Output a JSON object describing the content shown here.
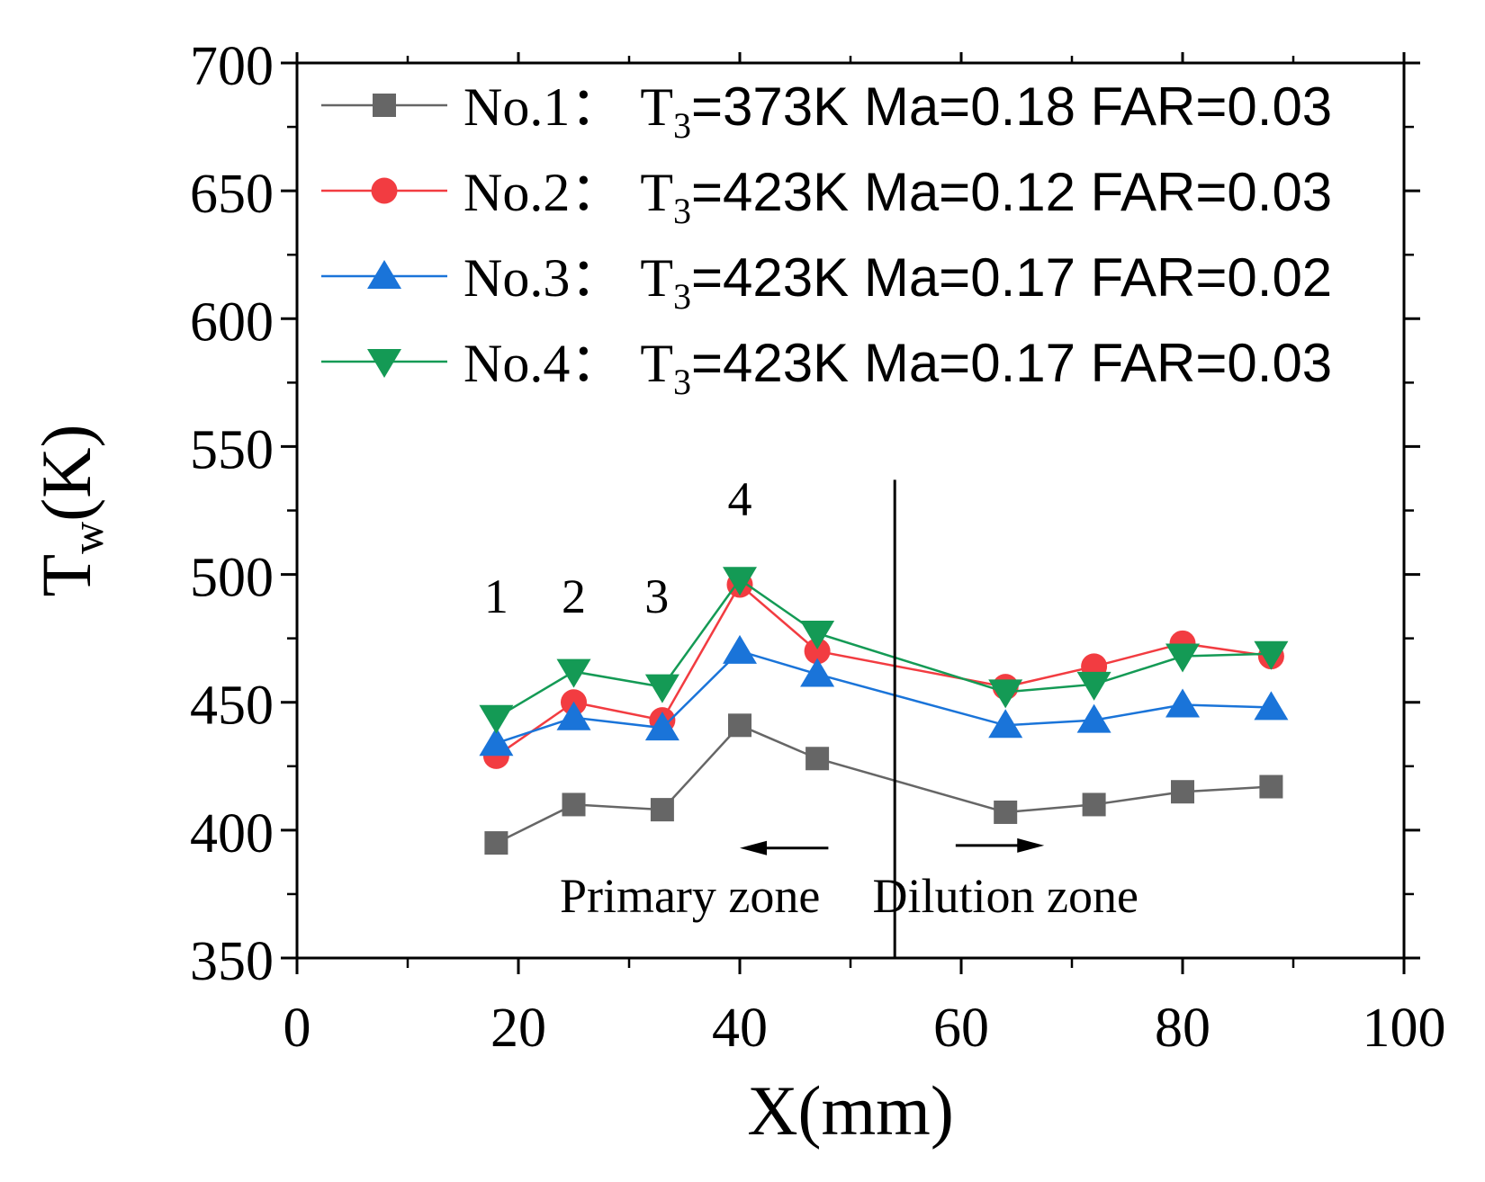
{
  "chart_data": {
    "type": "line",
    "title": "",
    "xlabel": "X(mm)",
    "ylabel_main": "T",
    "ylabel_sub": "w",
    "ylabel_tail": "(K)",
    "xlim": [
      0,
      100
    ],
    "ylim": [
      350,
      700
    ],
    "xticks": [
      0,
      20,
      40,
      60,
      80,
      100
    ],
    "yticks": [
      350,
      400,
      450,
      500,
      550,
      600,
      650,
      700
    ],
    "grid": false,
    "legend_position": "top",
    "x": [
      18,
      25,
      33,
      40,
      47,
      64,
      72,
      80,
      88
    ],
    "series": [
      {
        "name": "No.1",
        "legend_prefix": "No.1：",
        "legend_t": "T",
        "legend_sub": "3",
        "legend_rest": "=373K Ma=0.18 FAR=0.03",
        "color": "#666666",
        "marker": "square",
        "values": [
          395,
          410,
          408,
          441,
          428,
          407,
          410,
          415,
          417
        ]
      },
      {
        "name": "No.2",
        "legend_prefix": "No.2：",
        "legend_t": "T",
        "legend_sub": "3",
        "legend_rest": "=423K Ma=0.12 FAR=0.03",
        "color": "#f23c41",
        "marker": "circle",
        "values": [
          429,
          450,
          443,
          496,
          470,
          456,
          464,
          473,
          468
        ]
      },
      {
        "name": "No.3",
        "legend_prefix": "No.3：",
        "legend_t": "T",
        "legend_sub": "3",
        "legend_rest": "=423K Ma=0.17 FAR=0.02",
        "color": "#1a74d9",
        "marker": "triangle-up",
        "values": [
          434,
          444,
          440,
          470,
          461,
          441,
          443,
          449,
          448
        ]
      },
      {
        "name": "No.4",
        "legend_prefix": "No.4：",
        "legend_t": "T",
        "legend_sub": "3",
        "legend_rest": "=423K Ma=0.17 FAR=0.03",
        "color": "#149a55",
        "marker": "triangle-down",
        "values": [
          444,
          462,
          456,
          498,
          477,
          454,
          457,
          468,
          469
        ]
      }
    ],
    "point_labels": [
      {
        "text": "1",
        "x": 18,
        "y": 485
      },
      {
        "text": "2",
        "x": 25,
        "y": 485
      },
      {
        "text": "3",
        "x": 32.5,
        "y": 485
      },
      {
        "text": "4",
        "x": 40,
        "y": 523
      }
    ],
    "divider_x": 54,
    "divider_top": 537,
    "zones": {
      "primary": {
        "text": "Primary zone",
        "x": 35.5,
        "y": 368,
        "arrow_from": 48,
        "arrow_to": 40,
        "arrow_y": 393
      },
      "dilution": {
        "text": "Dilution zone",
        "x": 64,
        "y": 368,
        "arrow_from": 59.5,
        "arrow_to": 67.5,
        "arrow_y": 394
      }
    }
  }
}
